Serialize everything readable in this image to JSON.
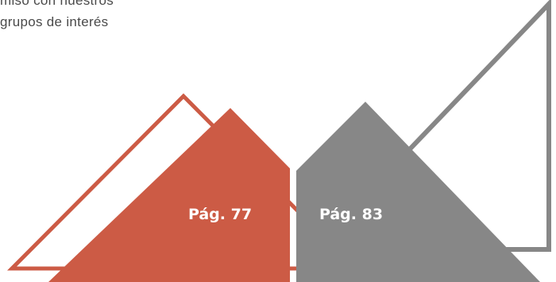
{
  "intro_text": {
    "line1": "miso con nuestros",
    "line2": "grupos de interés"
  },
  "page_links": [
    {
      "label": "Pág. 77",
      "color": "#cc5b45"
    },
    {
      "label": "Pág. 83",
      "color": "#878787"
    }
  ],
  "colors": {
    "accent_red": "#cc5b45",
    "accent_gray": "#878787",
    "text": "#4a4a4a"
  },
  "icons": [
    "red-triangle-outline",
    "red-triangle-solid",
    "gray-triangle-solid",
    "gray-triangle-outline"
  ]
}
